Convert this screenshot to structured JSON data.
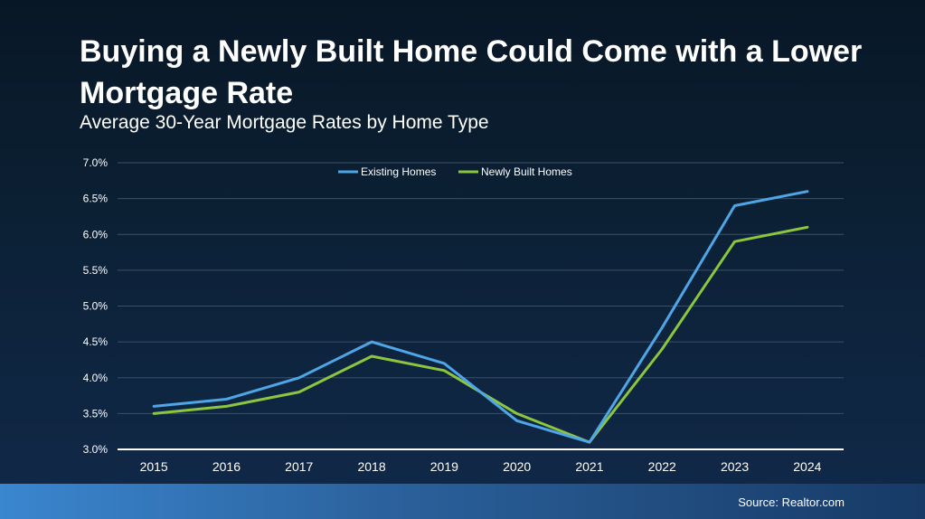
{
  "title": "Buying a Newly Built Home Could Come with a Lower Mortgage Rate",
  "subtitle": "Average 30-Year Mortgage Rates by Home Type",
  "source": "Source: Realtor.com",
  "chart_data": {
    "type": "line",
    "x": [
      "2015",
      "2016",
      "2017",
      "2018",
      "2019",
      "2020",
      "2021",
      "2022",
      "2023",
      "2024"
    ],
    "ylim": [
      3.0,
      7.0
    ],
    "yticks": [
      3.0,
      3.5,
      4.0,
      4.5,
      5.0,
      5.5,
      6.0,
      6.5,
      7.0
    ],
    "ytick_labels": [
      "3.0%",
      "3.5%",
      "4.0%",
      "4.5%",
      "5.0%",
      "5.5%",
      "6.0%",
      "6.5%",
      "7.0%"
    ],
    "grid": true,
    "legend_position": "top-center",
    "series": [
      {
        "name": "Existing Homes",
        "color": "#4ea6e6",
        "values": [
          3.6,
          3.7,
          4.0,
          4.5,
          4.2,
          3.4,
          3.1,
          4.7,
          6.4,
          6.6
        ]
      },
      {
        "name": "Newly Built Homes",
        "color": "#8cc63f",
        "values": [
          3.5,
          3.6,
          3.8,
          4.3,
          4.1,
          3.5,
          3.1,
          4.4,
          5.9,
          6.1
        ]
      }
    ]
  }
}
